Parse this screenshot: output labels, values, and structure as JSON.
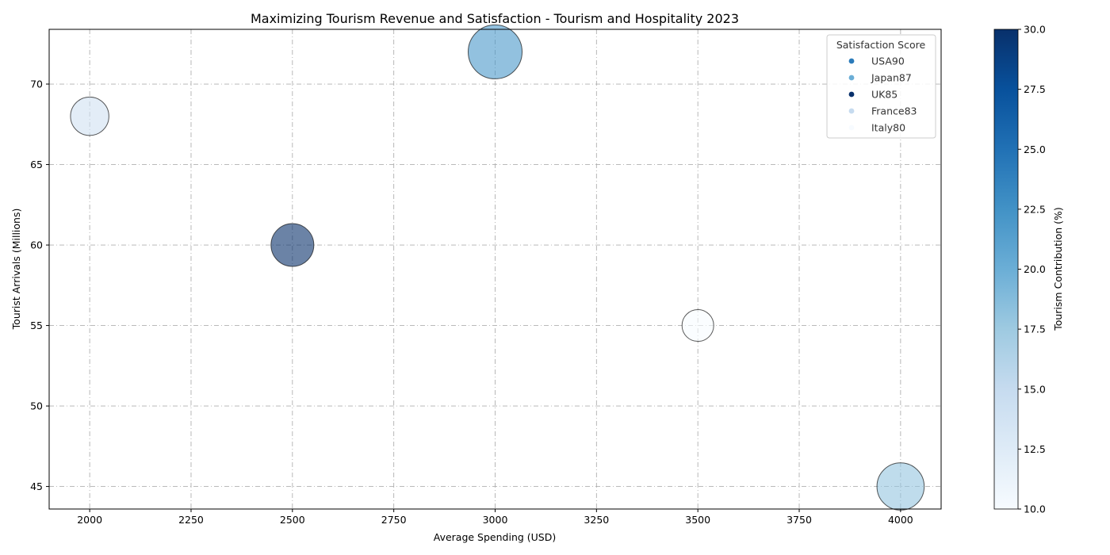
{
  "chart_data": {
    "type": "scatter",
    "title": "Maximizing Tourism Revenue and Satisfaction - Tourism and Hospitality 2023",
    "xlabel": "Average Spending (USD)",
    "ylabel": "Tourist Arrivals (Millions)",
    "xlim": [
      1900,
      4100
    ],
    "ylim": [
      43.6,
      73.4
    ],
    "xticks": [
      "2000",
      "2250",
      "2500",
      "2750",
      "3000",
      "3250",
      "3500",
      "3750",
      "4000"
    ],
    "yticks": [
      "45",
      "50",
      "55",
      "60",
      "65",
      "70"
    ],
    "grid": true,
    "legend_title": "Satisfaction Score",
    "legend_position": "top-right",
    "points": [
      {
        "label": "USA90",
        "x": 3000,
        "y": 72,
        "contribution": 22,
        "satisfaction": 90
      },
      {
        "label": "Japan87",
        "x": 4000,
        "y": 45,
        "contribution": 18,
        "satisfaction": 87
      },
      {
        "label": "UK85",
        "x": 2500,
        "y": 60,
        "contribution": 30,
        "satisfaction": 85
      },
      {
        "label": "France83",
        "x": 2000,
        "y": 68,
        "contribution": 14,
        "satisfaction": 83
      },
      {
        "label": "Italy80",
        "x": 3500,
        "y": 55,
        "contribution": 10,
        "satisfaction": 80
      }
    ],
    "legend_entries": [
      {
        "label": "USA90",
        "color": "#2b7bba"
      },
      {
        "label": "Japan87",
        "color": "#6baed6"
      },
      {
        "label": "UK85",
        "color": "#08306b"
      },
      {
        "label": "France83",
        "color": "#c6dbef"
      },
      {
        "label": "Italy80",
        "color": "#f7fbff"
      }
    ],
    "colorbar": {
      "label": "Tourism Contribution (%)",
      "min": 10,
      "max": 30,
      "ticks": [
        "10.0",
        "12.5",
        "15.0",
        "17.5",
        "20.0",
        "22.5",
        "25.0",
        "27.5",
        "30.0"
      ],
      "colormap": "Blues"
    }
  }
}
